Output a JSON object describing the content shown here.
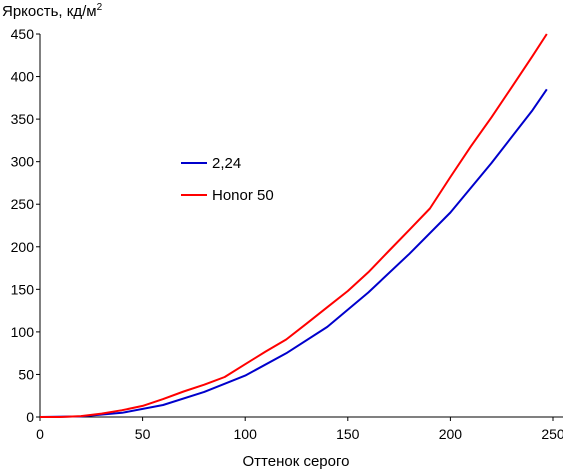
{
  "chart_data": {
    "type": "line",
    "ylabel": "Яркость, кд/м",
    "ylabel_sup": "2",
    "xlabel": "Оттенок серого",
    "xlim": [
      0,
      255
    ],
    "ylim": [
      0,
      450
    ],
    "xticks": [
      0,
      50,
      100,
      150,
      200,
      250
    ],
    "yticks": [
      0,
      50,
      100,
      150,
      200,
      250,
      300,
      350,
      400,
      450
    ],
    "grid": false,
    "legend_position": "center-left",
    "series": [
      {
        "name": "2,24",
        "color": "#0000cc",
        "x": [
          0,
          20,
          40,
          60,
          80,
          100,
          120,
          140,
          160,
          180,
          200,
          220,
          240,
          247
        ],
        "y": [
          0,
          0.7,
          4.9,
          14.1,
          29.5,
          48.6,
          74.8,
          105.9,
          146.3,
          191.8,
          240.3,
          298.3,
          360.5,
          385
        ]
      },
      {
        "name": "Honor 50",
        "color": "#ff0000",
        "x": [
          0,
          10,
          20,
          30,
          40,
          50,
          60,
          70,
          80,
          90,
          100,
          110,
          120,
          130,
          140,
          150,
          160,
          170,
          180,
          190,
          200,
          210,
          220,
          230,
          240,
          247
        ],
        "y": [
          0,
          0,
          1,
          4,
          8,
          13,
          21,
          30,
          38,
          47,
          62,
          77,
          91,
          110,
          129,
          148,
          170,
          195,
          220,
          245,
          282,
          318,
          352,
          388,
          424,
          450
        ]
      }
    ]
  }
}
